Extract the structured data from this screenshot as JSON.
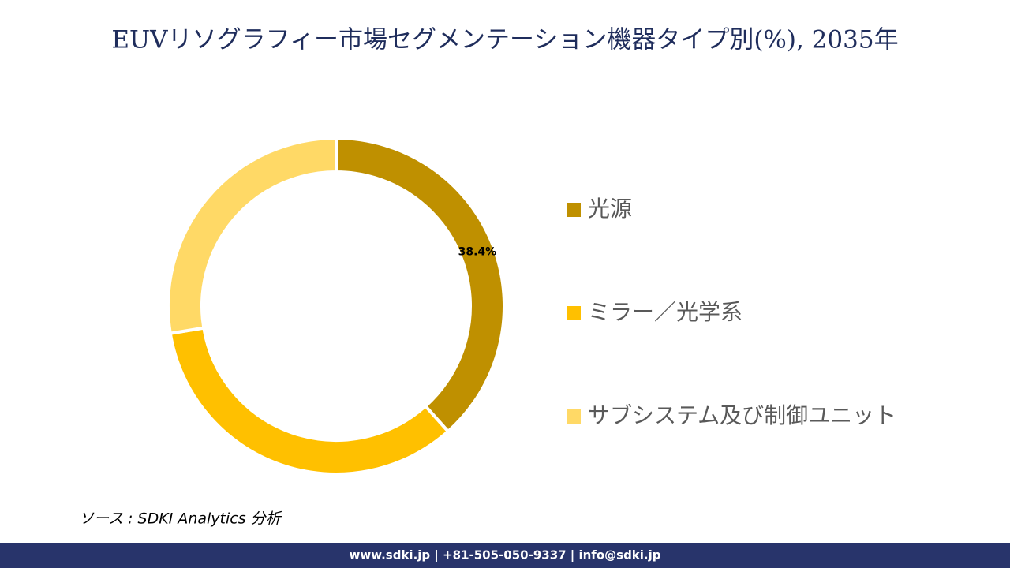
{
  "chart_data": {
    "type": "pie",
    "donut": true,
    "title": "EUVリソグラフィー市場セグメンテーション機器タイプ別(%), 2035年",
    "categories": [
      "光源",
      "ミラー／光学系",
      "サブシステム及び制御ユニット"
    ],
    "values": [
      38.4,
      34.0,
      27.6
    ],
    "value_labels": [
      "38.4%",
      null,
      null
    ],
    "colors": [
      "#bf9000",
      "#ffc000",
      "#ffd966"
    ],
    "legend": "right"
  },
  "source": "ソース : SDKI Analytics 分析",
  "footer": "www.sdki.jp | +81-505-050-9337 | info@sdki.jp"
}
